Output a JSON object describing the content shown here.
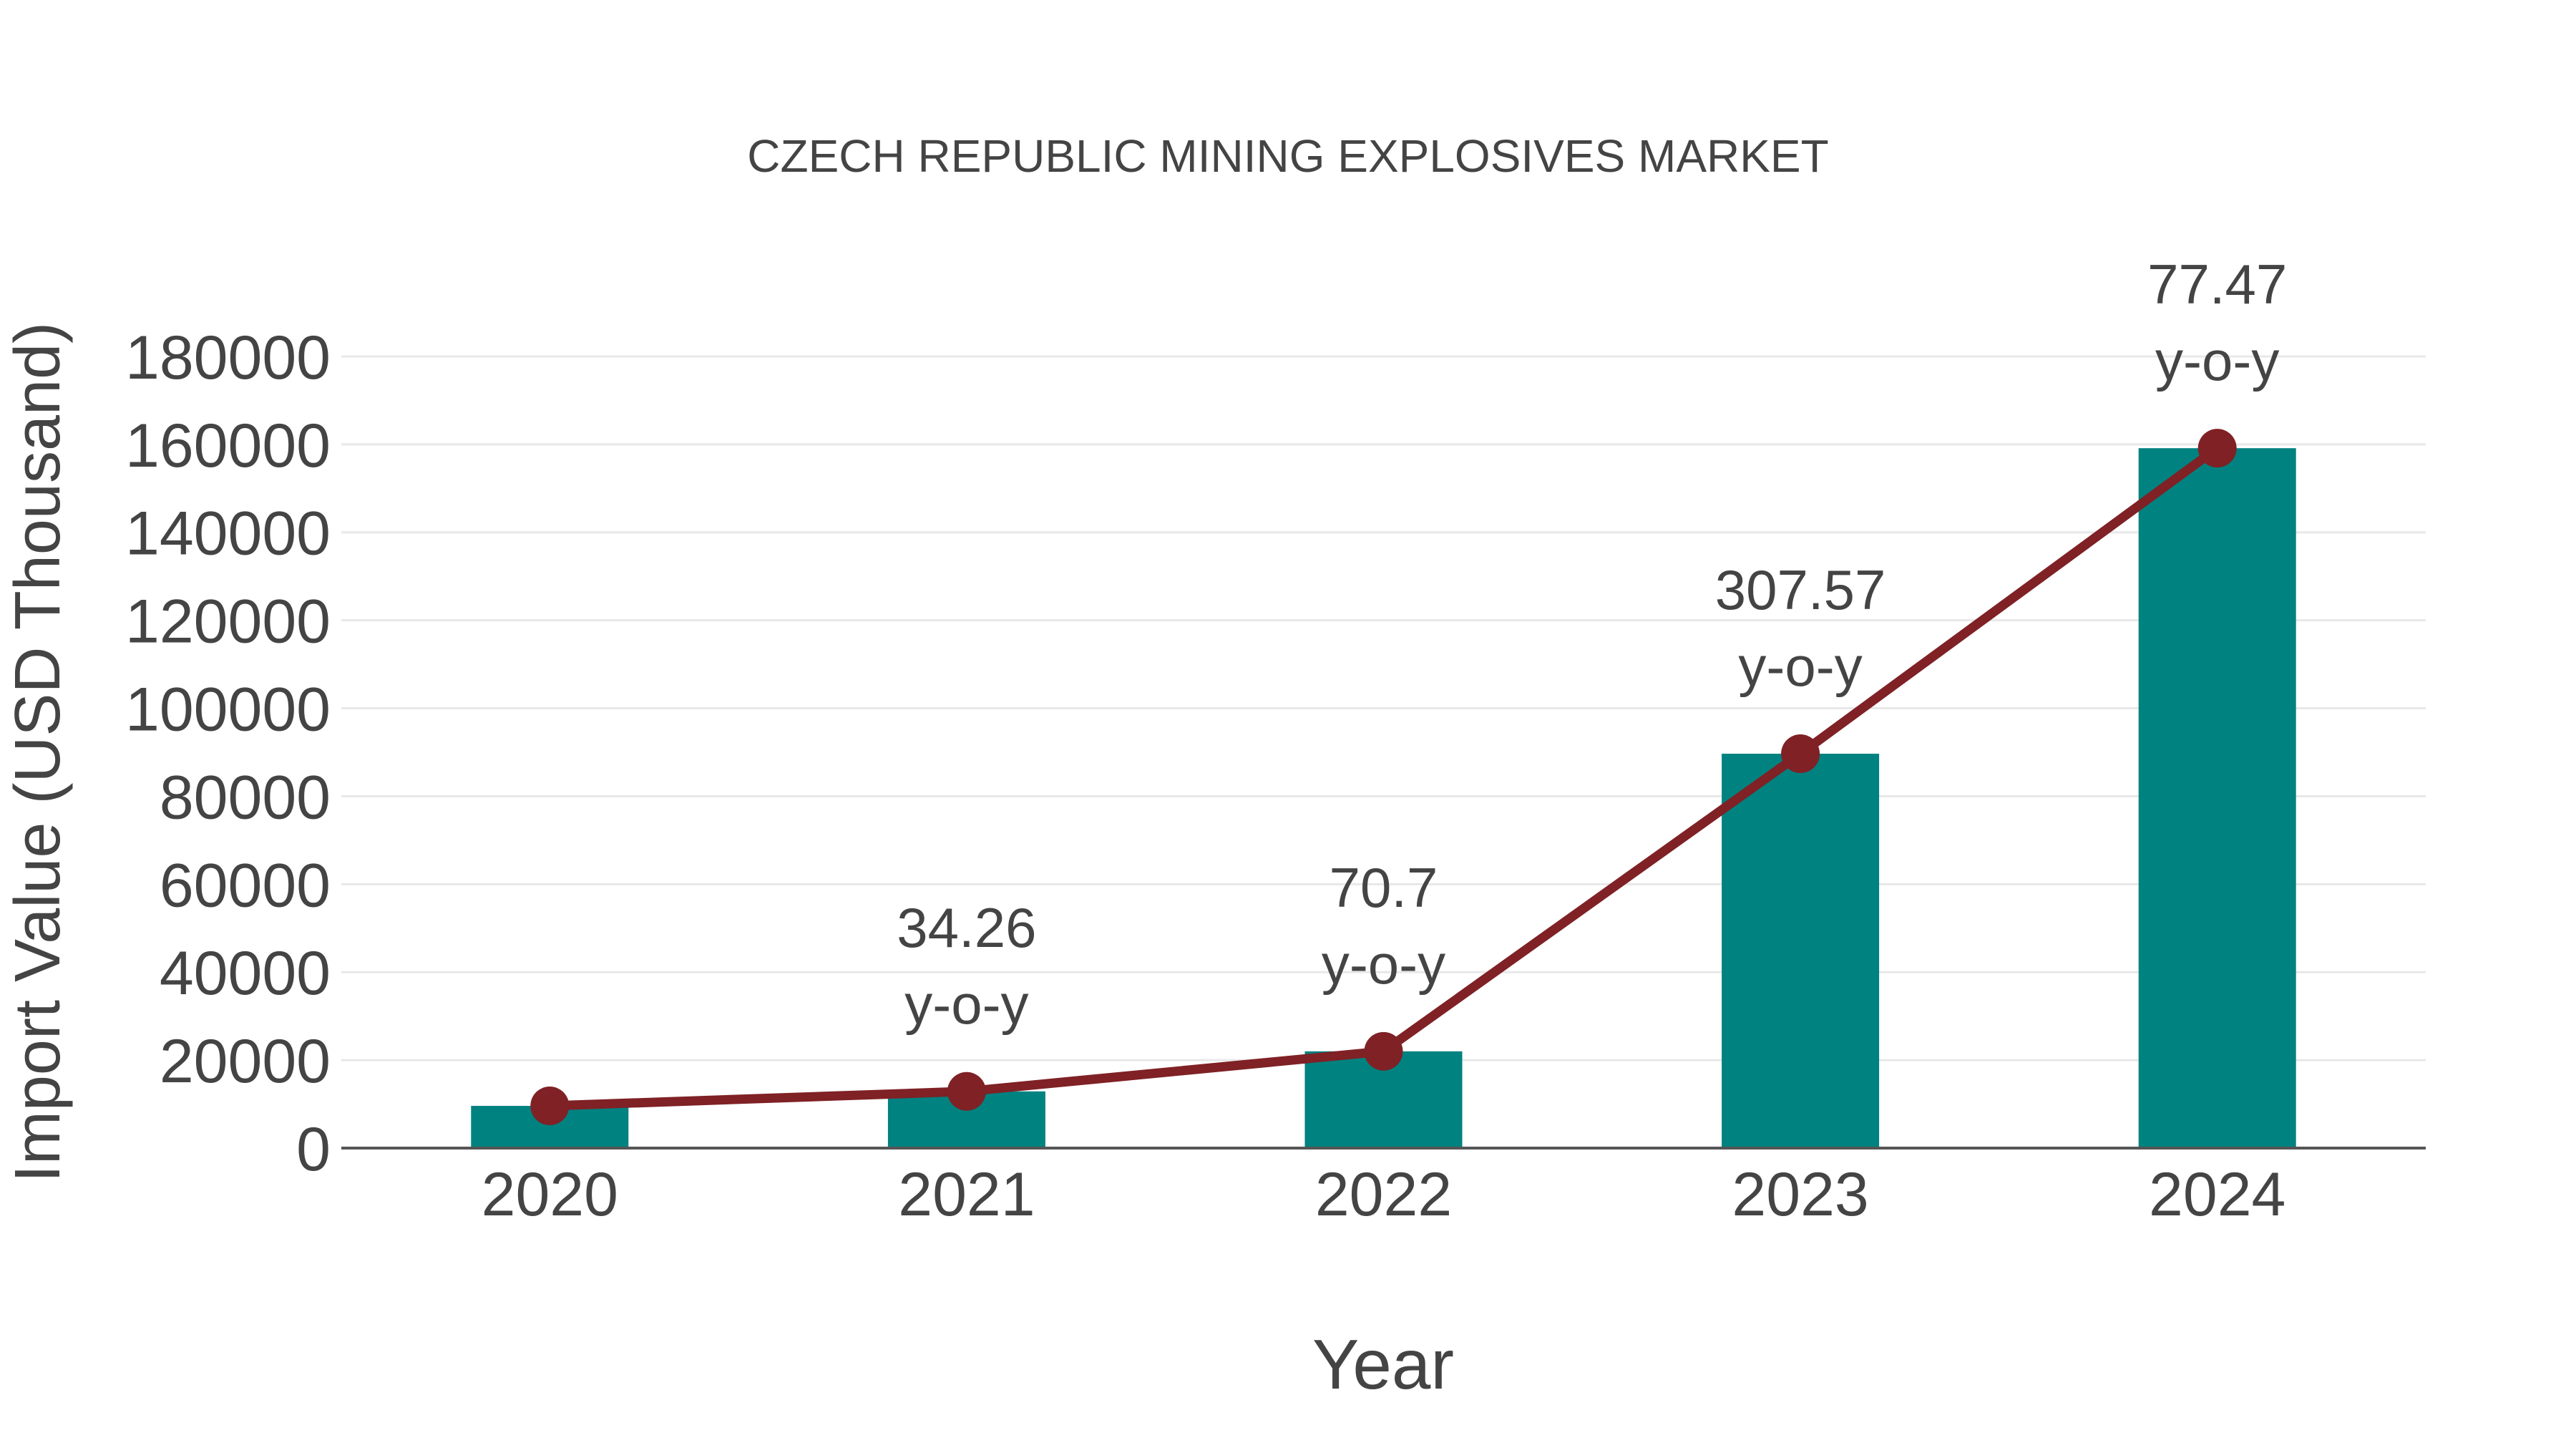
{
  "chart_data": {
    "type": "bar",
    "title": "CZECH REPUBLIC MINING EXPLOSIVES MARKET",
    "xlabel": "Year",
    "ylabel": "Import Value (USD Thousand)",
    "categories": [
      "2020",
      "2021",
      "2022",
      "2023",
      "2024"
    ],
    "series": [
      {
        "name": "Import Value bars",
        "type": "bar",
        "color": "#008280",
        "values": [
          9600,
          12890,
          22000,
          89670,
          159140
        ]
      },
      {
        "name": "Import Value trend line",
        "type": "line",
        "color": "#7F2125",
        "values": [
          9600,
          12890,
          22000,
          89670,
          159140
        ]
      }
    ],
    "annotations": [
      {
        "category": "2021",
        "lines": [
          "34.26",
          "y-o-y"
        ]
      },
      {
        "category": "2022",
        "lines": [
          "70.7",
          "y-o-y"
        ]
      },
      {
        "category": "2023",
        "lines": [
          "307.57",
          "y-o-y"
        ]
      },
      {
        "category": "2024",
        "lines": [
          "77.47",
          "y-o-y"
        ]
      }
    ],
    "ylim": [
      0,
      180000
    ],
    "ytick_step": 20000,
    "ytick_labels": [
      "0",
      "20000",
      "40000",
      "60000",
      "80000",
      "100000",
      "120000",
      "140000",
      "160000",
      "180000"
    ],
    "grid": true,
    "legend": "none",
    "colors": {
      "bar": "#008280",
      "line": "#7F2125",
      "marker": "#7F2125",
      "grid": "#E8E8E8",
      "axis_line": "#555555",
      "text": "#444444"
    }
  }
}
